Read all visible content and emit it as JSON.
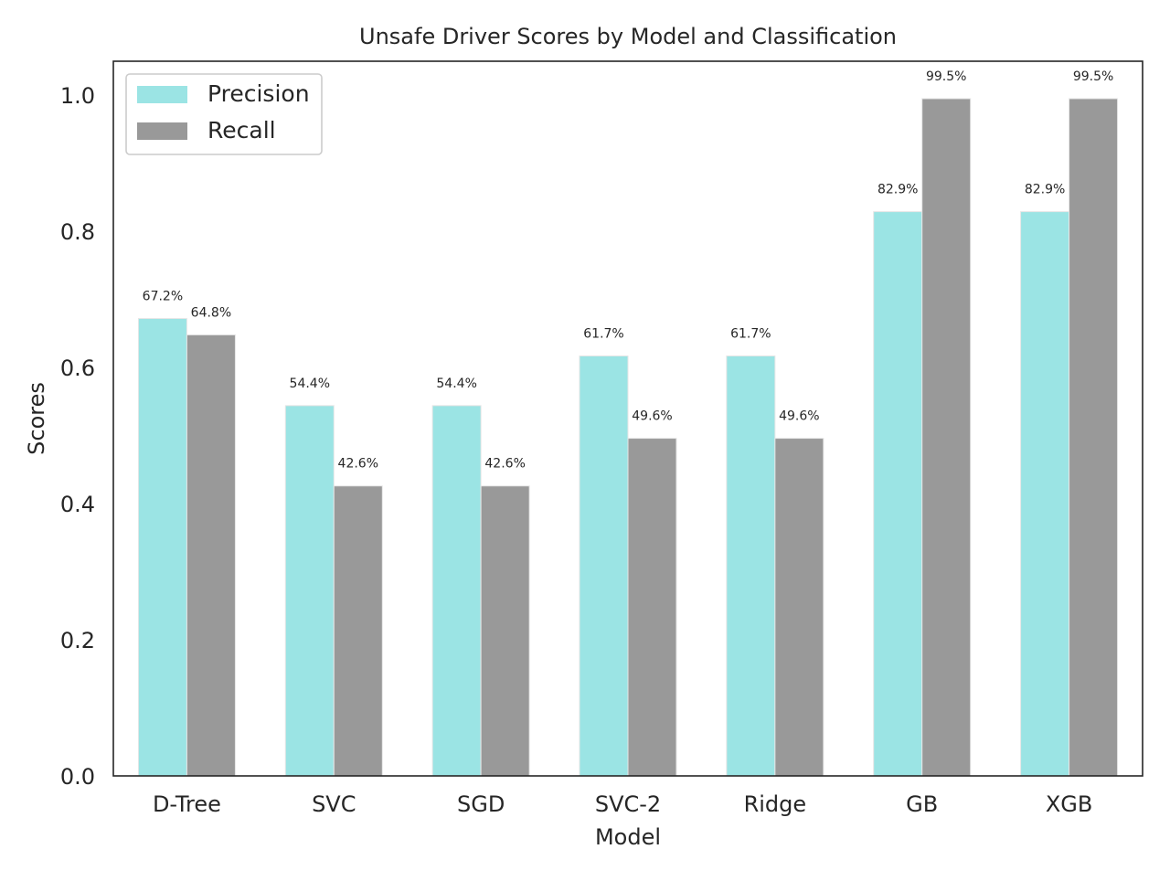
{
  "chart_data": {
    "type": "bar",
    "title": "Unsafe Driver Scores by Model and Classification",
    "xlabel": "Model",
    "ylabel": "Scores",
    "categories": [
      "D-Tree",
      "SVC",
      "SGD",
      "SVC-2",
      "Ridge",
      "GB",
      "XGB"
    ],
    "series": [
      {
        "name": "Precision",
        "color": "#9be4e4",
        "values": [
          0.672,
          0.544,
          0.544,
          0.617,
          0.617,
          0.829,
          0.829
        ],
        "labels": [
          "67.2%",
          "54.4%",
          "54.4%",
          "61.7%",
          "61.7%",
          "82.9%",
          "82.9%"
        ]
      },
      {
        "name": "Recall",
        "color": "#999999",
        "values": [
          0.648,
          0.426,
          0.426,
          0.496,
          0.496,
          0.995,
          0.995
        ],
        "labels": [
          "64.8%",
          "42.6%",
          "42.6%",
          "49.6%",
          "49.6%",
          "99.5%",
          "99.5%"
        ]
      }
    ],
    "ylim": [
      0,
      1.05
    ],
    "yticks": [
      0.0,
      0.2,
      0.4,
      0.6,
      0.8,
      1.0
    ],
    "ytick_labels": [
      "0.0",
      "0.2",
      "0.4",
      "0.6",
      "0.8",
      "1.0"
    ],
    "grid": false,
    "legend_position": "upper left"
  }
}
